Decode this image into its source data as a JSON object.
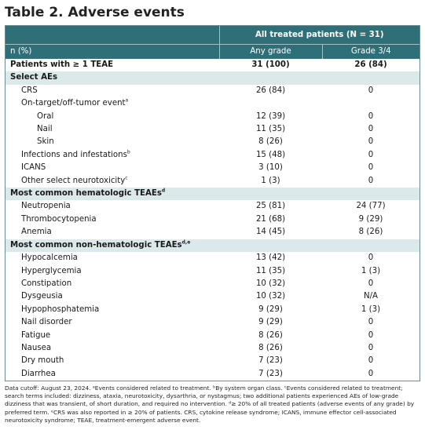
{
  "title": "Table 2. Adverse events",
  "header": {
    "group": "All treated patients (N = 31)",
    "col0": "n (%)",
    "col1": "Any grade",
    "col2": "Grade 3/4"
  },
  "rows": [
    {
      "type": "bold",
      "label": "Patients with ≥ 1 TEAE",
      "sup": "",
      "any": "31 (100)",
      "g34": "26 (84)"
    },
    {
      "type": "section",
      "label": "Select AEs",
      "sup": "",
      "any": "",
      "g34": ""
    },
    {
      "type": "l2",
      "label": "CRS",
      "sup": "",
      "any": "26 (84)",
      "g34": "0"
    },
    {
      "type": "l2",
      "label": "On-target/off-tumor event",
      "sup": "a",
      "any": "",
      "g34": ""
    },
    {
      "type": "l3",
      "label": "Oral",
      "sup": "",
      "any": "12 (39)",
      "g34": "0"
    },
    {
      "type": "l3",
      "label": "Nail",
      "sup": "",
      "any": "11 (35)",
      "g34": "0"
    },
    {
      "type": "l3",
      "label": "Skin",
      "sup": "",
      "any": "8 (26)",
      "g34": "0"
    },
    {
      "type": "l2",
      "label": "Infections and infestations",
      "sup": "b",
      "any": "15 (48)",
      "g34": "0"
    },
    {
      "type": "l2",
      "label": "ICANS",
      "sup": "",
      "any": "3 (10)",
      "g34": "0"
    },
    {
      "type": "l2",
      "label": "Other select neurotoxicity",
      "sup": "c",
      "any": "1 (3)",
      "g34": "0"
    },
    {
      "type": "section",
      "label": "Most common hematologic TEAEs",
      "sup": "d",
      "any": "",
      "g34": ""
    },
    {
      "type": "l2",
      "label": "Neutropenia",
      "sup": "",
      "any": "25 (81)",
      "g34": "24 (77)"
    },
    {
      "type": "l2",
      "label": "Thrombocytopenia",
      "sup": "",
      "any": "21 (68)",
      "g34": "9 (29)"
    },
    {
      "type": "l2",
      "label": "Anemia",
      "sup": "",
      "any": "14 (45)",
      "g34": "8 (26)"
    },
    {
      "type": "section",
      "label": "Most common non-hematologic TEAEs",
      "sup": "d,e",
      "any": "",
      "g34": ""
    },
    {
      "type": "l2",
      "label": "Hypocalcemia",
      "sup": "",
      "any": "13 (42)",
      "g34": "0"
    },
    {
      "type": "l2",
      "label": "Hyperglycemia",
      "sup": "",
      "any": "11 (35)",
      "g34": "1 (3)"
    },
    {
      "type": "l2",
      "label": "Constipation",
      "sup": "",
      "any": "10 (32)",
      "g34": "0"
    },
    {
      "type": "l2",
      "label": "Dysgeusia",
      "sup": "",
      "any": "10 (32)",
      "g34": "N/A"
    },
    {
      "type": "l2",
      "label": "Hypophosphatemia",
      "sup": "",
      "any": "9 (29)",
      "g34": "1 (3)"
    },
    {
      "type": "l2",
      "label": "Nail disorder",
      "sup": "",
      "any": "9 (29)",
      "g34": "0"
    },
    {
      "type": "l2",
      "label": "Fatigue",
      "sup": "",
      "any": "8 (26)",
      "g34": "0"
    },
    {
      "type": "l2",
      "label": "Nausea",
      "sup": "",
      "any": "8 (26)",
      "g34": "0"
    },
    {
      "type": "l2",
      "label": "Dry mouth",
      "sup": "",
      "any": "7 (23)",
      "g34": "0"
    },
    {
      "type": "l2",
      "label": "Diarrhea",
      "sup": "",
      "any": "7 (23)",
      "g34": "0"
    }
  ],
  "footnote": "Data cutoff: August 23, 2024. ᵃEvents considered related to treatment. ᵇBy system organ class. ᶜEvents considered related to treatment; search terms included: dizziness, ataxia, neurotoxicity, dysarthria, or nystagmus; two additional patients experienced AEs of low-grade dizziness that was transient, of short duration, and required no intervention. ᵈ≥ 20% of all treated patients (adverse events of any grade) by preferred term. ᵉCRS was also reported in ≥ 20% of patients. CRS, cytokine release syndrome; ICANS, immune effector cell-associated neurotoxicity syndrome; TEAE, treatment-emergent adverse event.",
  "colors": {
    "header_bg": "#2e6f78",
    "section_bg": "#dce9ea",
    "border": "#6c8e93"
  }
}
